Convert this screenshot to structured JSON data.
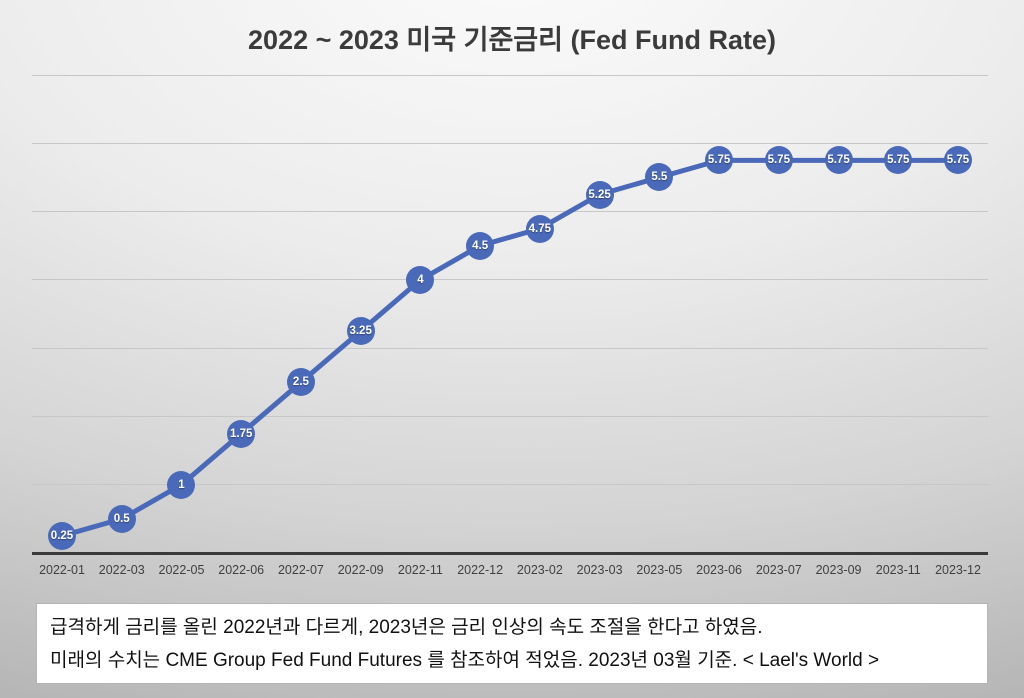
{
  "slide": {
    "title": "2022 ~ 2023 미국 기준금리 (Fed Fund Rate)"
  },
  "chart_data": {
    "type": "line",
    "title": "2022 ~ 2023 미국 기준금리 (Fed Fund Rate)",
    "categories": [
      "2022-01",
      "2022-03",
      "2022-05",
      "2022-06",
      "2022-07",
      "2022-09",
      "2022-11",
      "2022-12",
      "2023-02",
      "2023-03",
      "2023-05",
      "2023-06",
      "2023-07",
      "2023-09",
      "2023-11",
      "2023-12"
    ],
    "values": [
      0.25,
      0.5,
      1,
      1.75,
      2.5,
      3.25,
      4,
      4.5,
      4.75,
      5.25,
      5.5,
      5.75,
      5.75,
      5.75,
      5.75,
      5.75
    ],
    "point_labels": [
      "0.25",
      "0.5",
      "1",
      "1.75",
      "2.5",
      "3.25",
      "4",
      "4.5",
      "4.75",
      "5.25",
      "5.5",
      "5.75",
      "5.75",
      "5.75",
      "5.75",
      "5.75"
    ],
    "xlabel": "",
    "ylabel": "",
    "ylim": [
      0,
      7
    ],
    "grid": true,
    "legend_position": "none",
    "colors": {
      "line": "#4a69b8",
      "marker": "#4a69b8",
      "marker_label": "#ffffff",
      "gridline": "#c7c7c7",
      "axis": "#3a3a3a",
      "tick_label": "#3f3f3f",
      "title": "#3b3b3b"
    }
  },
  "footer": {
    "line1": "급격하게 금리를 올린 2022년과 다르게, 2023년은 금리 인상의 속도 조절을 한다고 하였음.",
    "line2": "미래의 수치는 CME Group Fed Fund Futures 를 참조하여 적었음. 2023년 03월 기준. < Lael's World >"
  }
}
